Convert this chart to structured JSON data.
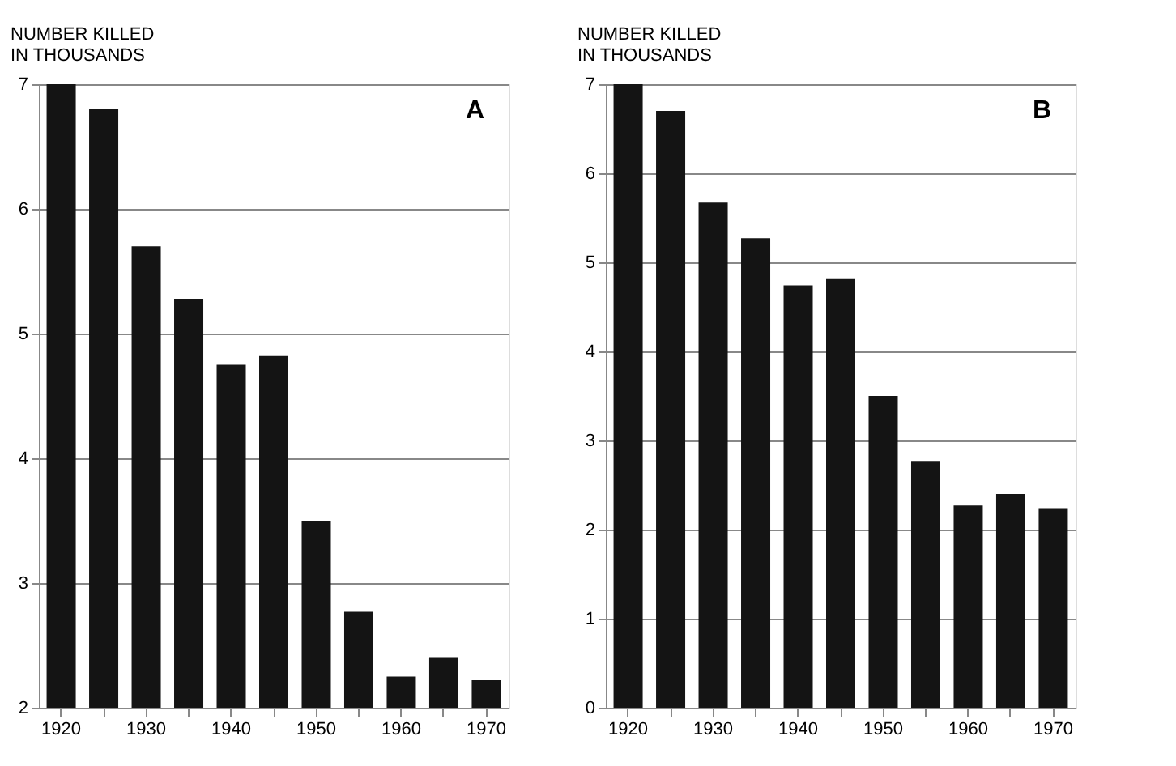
{
  "chart_data": [
    {
      "type": "bar",
      "ylabel": "NUMBER KILLED\nIN THOUSANDS",
      "categories": [
        "1920",
        null,
        "1930",
        null,
        "1940",
        null,
        "1950",
        null,
        "1960",
        null,
        "1970"
      ],
      "values": [
        7.0,
        6.8,
        5.7,
        5.28,
        4.75,
        4.82,
        3.5,
        2.77,
        2.25,
        2.4,
        2.22
      ],
      "color": "#141414",
      "ylim": [
        2,
        7
      ],
      "yticks": [
        2,
        3,
        4,
        5,
        6,
        7
      ],
      "grid": "y",
      "annotations": [
        "A"
      ]
    },
    {
      "type": "bar",
      "ylabel": "NUMBER KILLED\nIN THOUSANDS",
      "categories": [
        "1920",
        null,
        "1930",
        null,
        "1940",
        null,
        "1950",
        null,
        "1960",
        null,
        "1970"
      ],
      "values": [
        7.0,
        6.7,
        5.67,
        5.27,
        4.74,
        4.82,
        3.5,
        2.77,
        2.27,
        2.4,
        2.24
      ],
      "color": "#141414",
      "ylim": [
        0,
        7
      ],
      "yticks": [
        0,
        1,
        2,
        3,
        4,
        5,
        6,
        7
      ],
      "grid": "y",
      "annotations": [
        "B"
      ]
    }
  ]
}
